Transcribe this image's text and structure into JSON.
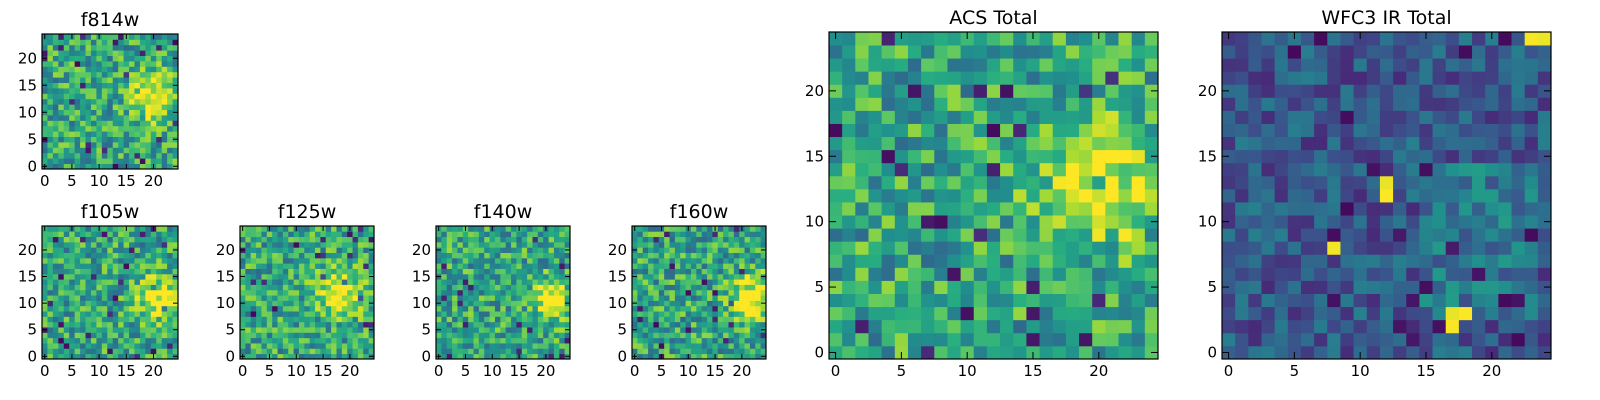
{
  "chart_data": [
    {
      "type": "heatmap",
      "title": "f814w",
      "xlim": [
        -0.5,
        24.5
      ],
      "ylim": [
        -0.5,
        24.5
      ],
      "x_ticks": [
        "0",
        "5",
        "10",
        "15",
        "20"
      ],
      "y_ticks": [
        "0",
        "5",
        "10",
        "15",
        "20"
      ],
      "colormap": "viridis",
      "grid_size": [
        25,
        25
      ],
      "bright_region": {
        "center": [
          20,
          13
        ],
        "radius": 3
      }
    },
    {
      "type": "heatmap",
      "title": "f105w",
      "xlim": [
        -0.5,
        24.5
      ],
      "ylim": [
        -0.5,
        24.5
      ],
      "x_ticks": [
        "0",
        "5",
        "10",
        "15",
        "20"
      ],
      "y_ticks": [
        "0",
        "5",
        "10",
        "15",
        "20"
      ],
      "colormap": "viridis",
      "grid_size": [
        25,
        25
      ],
      "bright_region": {
        "center": [
          21,
          11
        ],
        "radius": 3
      }
    },
    {
      "type": "heatmap",
      "title": "f125w",
      "xlim": [
        -0.5,
        24.5
      ],
      "ylim": [
        -0.5,
        24.5
      ],
      "x_ticks": [
        "0",
        "5",
        "10",
        "15",
        "20"
      ],
      "y_ticks": [
        "0",
        "5",
        "10",
        "15",
        "20"
      ],
      "colormap": "viridis",
      "grid_size": [
        25,
        25
      ],
      "bright_region": {
        "center": [
          18,
          12
        ],
        "radius": 3
      }
    },
    {
      "type": "heatmap",
      "title": "f140w",
      "xlim": [
        -0.5,
        24.5
      ],
      "ylim": [
        -0.5,
        24.5
      ],
      "x_ticks": [
        "0",
        "5",
        "10",
        "15",
        "20"
      ],
      "y_ticks": [
        "0",
        "5",
        "10",
        "15",
        "20"
      ],
      "colormap": "viridis",
      "grid_size": [
        25,
        25
      ],
      "bright_region": {
        "center": [
          21,
          11
        ],
        "radius": 2.5
      }
    },
    {
      "type": "heatmap",
      "title": "f160w",
      "xlim": [
        -0.5,
        24.5
      ],
      "ylim": [
        -0.5,
        24.5
      ],
      "x_ticks": [
        "0",
        "5",
        "10",
        "15",
        "20"
      ],
      "y_ticks": [
        "0",
        "5",
        "10",
        "15",
        "20"
      ],
      "colormap": "viridis",
      "grid_size": [
        25,
        25
      ],
      "bright_region": {
        "center": [
          22,
          11
        ],
        "radius": 3
      }
    },
    {
      "type": "heatmap",
      "title": "ACS Total",
      "xlim": [
        -0.5,
        24.5
      ],
      "ylim": [
        -0.5,
        24.5
      ],
      "x_ticks": [
        "0",
        "5",
        "10",
        "15",
        "20"
      ],
      "y_ticks": [
        "0",
        "5",
        "10",
        "15",
        "20"
      ],
      "colormap": "viridis",
      "grid_size": [
        25,
        25
      ],
      "bright_region": {
        "center": [
          20,
          13
        ],
        "radius": 3
      }
    },
    {
      "type": "heatmap",
      "title": "WFC3 IR Total",
      "xlim": [
        -0.5,
        24.5
      ],
      "ylim": [
        -0.5,
        24.5
      ],
      "x_ticks": [
        "0",
        "5",
        "10",
        "15",
        "20"
      ],
      "y_ticks": [
        "0",
        "5",
        "10",
        "15",
        "20"
      ],
      "colormap": "viridis",
      "grid_size": [
        25,
        25
      ],
      "bright_pixels": [
        [
          24,
          24
        ],
        [
          23,
          24
        ],
        [
          12,
          13
        ],
        [
          12,
          12
        ],
        [
          8,
          8
        ],
        [
          17,
          3
        ],
        [
          18,
          3
        ],
        [
          17,
          2
        ]
      ]
    }
  ]
}
